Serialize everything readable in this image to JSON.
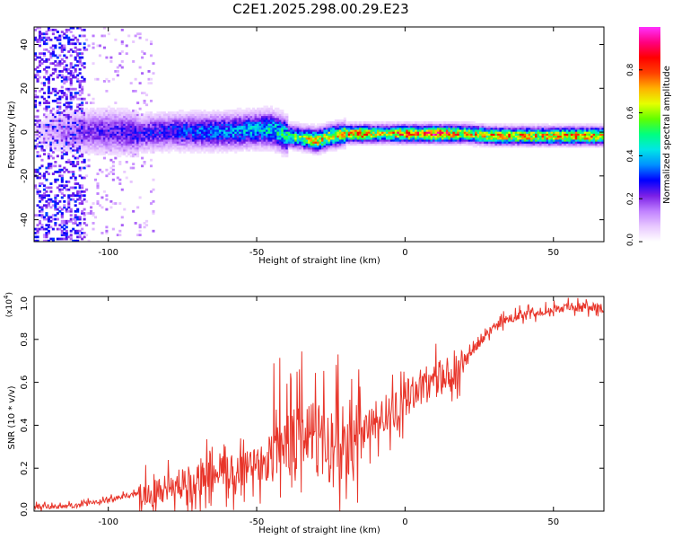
{
  "title": "C2E1.2025.298.00.29.E23",
  "chart_data": [
    {
      "type": "heatmap",
      "title": "C2E1.2025.298.00.29.E23",
      "xlabel": "Height of straight line (km)",
      "ylabel": "Frequency (Hz)",
      "xlim": [
        -125,
        67
      ],
      "ylim": [
        -50,
        48
      ],
      "xticks": [
        -100,
        -50,
        0,
        50
      ],
      "yticks": [
        -40,
        -20,
        0,
        20,
        40
      ],
      "colorbar": {
        "label": "Normalized spectral amplitude",
        "range": [
          0,
          1
        ],
        "ticks": [
          "0.0",
          "0.2",
          "0.4",
          "0.6",
          "0.8"
        ],
        "colors": [
          "#ffffff",
          "#e8c8ff",
          "#c080ff",
          "#7a1fe6",
          "#0000ff",
          "#0090ff",
          "#00e6e6",
          "#00ff80",
          "#60ff00",
          "#e6ff00",
          "#ffb000",
          "#ff4000",
          "#ff0000",
          "#ff0080",
          "#ff30ff"
        ]
      },
      "ridge": {
        "height_km": [
          -125,
          -110,
          -100,
          -90,
          -80,
          -70,
          -60,
          -50,
          -45,
          -40,
          -35,
          -30,
          -25,
          -20,
          -15,
          -10,
          -5,
          0,
          5,
          10,
          20,
          30,
          40,
          50,
          60,
          67
        ],
        "frequency_hz": [
          0,
          0,
          0,
          -1,
          0,
          0,
          0,
          1,
          1,
          -2,
          -3,
          -4,
          -2,
          -1,
          -1,
          -1,
          -1,
          -1,
          -1,
          -1,
          -1,
          -2,
          -2,
          -2,
          -2,
          -2
        ],
        "amplitude": [
          0.05,
          0.2,
          0.25,
          0.27,
          0.3,
          0.35,
          0.38,
          0.42,
          0.45,
          0.5,
          0.6,
          0.75,
          0.7,
          0.75,
          0.85,
          0.7,
          0.72,
          0.88,
          0.75,
          0.9,
          0.7,
          0.75,
          0.75,
          0.78,
          0.8,
          0.8
        ]
      }
    },
    {
      "type": "line",
      "title": "",
      "xlabel": "Height of straight line (km)",
      "ylabel": "SNR (10 * v/v)",
      "scale_label": "(x10",
      "scale_exponent": "4",
      "xlim": [
        -125,
        67
      ],
      "ylim": [
        0,
        1.0
      ],
      "xticks": [
        -100,
        -50,
        0,
        50
      ],
      "yticks": [
        "0.0",
        "0.2",
        "0.4",
        "0.6",
        "0.8",
        "1.0"
      ],
      "color": "#e8352a",
      "series": [
        {
          "name": "SNR",
          "x": [
            -125,
            -120,
            -115,
            -110,
            -105,
            -100,
            -95,
            -90,
            -85,
            -80,
            -75,
            -70,
            -65,
            -60,
            -55,
            -50,
            -45,
            -40,
            -35,
            -32,
            -30,
            -28,
            -25,
            -22,
            -20,
            -15,
            -10,
            -5,
            0,
            5,
            10,
            15,
            20,
            25,
            30,
            35,
            40,
            45,
            50,
            55,
            60,
            65,
            67
          ],
          "y": [
            0.02,
            0.02,
            0.02,
            0.03,
            0.04,
            0.05,
            0.07,
            0.08,
            0.09,
            0.11,
            0.13,
            0.15,
            0.16,
            0.18,
            0.2,
            0.23,
            0.26,
            0.3,
            0.33,
            0.4,
            0.3,
            0.4,
            0.25,
            0.3,
            0.3,
            0.38,
            0.42,
            0.45,
            0.52,
            0.58,
            0.6,
            0.65,
            0.7,
            0.78,
            0.86,
            0.9,
            0.92,
            0.93,
            0.94,
            0.95,
            0.95,
            0.95,
            0.94
          ]
        }
      ]
    }
  ]
}
